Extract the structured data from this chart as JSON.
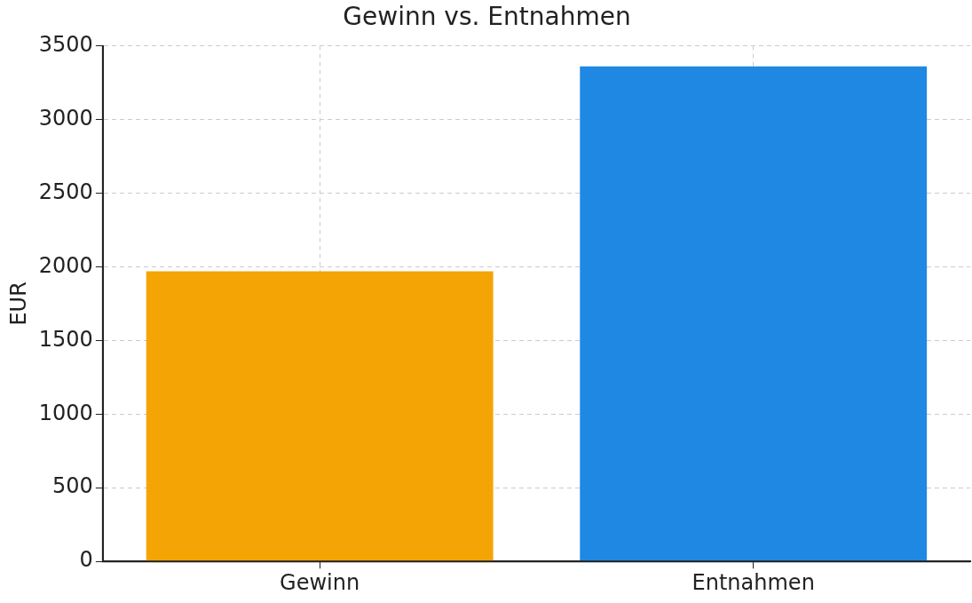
{
  "chart_data": {
    "type": "bar",
    "title": "Gewinn vs. Entnahmen",
    "ylabel": "EUR",
    "categories": [
      "Gewinn",
      "Entnahmen"
    ],
    "values": [
      1970,
      3360
    ],
    "colors": [
      "#f4a404",
      "#1f88e3"
    ],
    "ylim": [
      0,
      3500
    ],
    "yticks": [
      0,
      500,
      1000,
      1500,
      2000,
      2500,
      3000,
      3500
    ],
    "grid": true
  }
}
